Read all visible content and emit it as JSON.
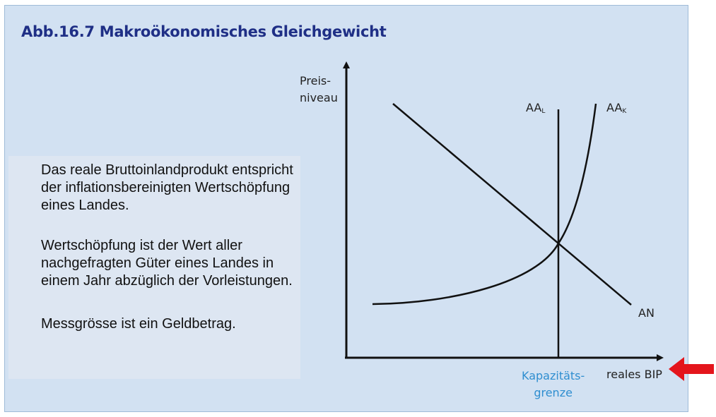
{
  "figure": {
    "title": "Abb.16.7  Makroökonomisches Gleichgewicht"
  },
  "text_box": {
    "p1": "Das reale Bruttoinlandprodukt entspricht der inflationsbereinigten Wertschöpfung eines Landes.",
    "p2": "Wertschöpfung ist der Wert aller nachgefragten Güter eines Landes in einem Jahr abzüglich der Vorleistungen.",
    "p3": "Messgrösse ist ein Geldbetrag."
  },
  "diagram": {
    "y_axis_line1": "Preis-",
    "y_axis_line2": "niveau",
    "x_axis": "reales BIP",
    "capacity_line1": "Kapazitäts-",
    "capacity_line2": "grenze",
    "aa_l": "AA",
    "aa_l_sub": "L",
    "aa_k": "AA",
    "aa_k_sub": "K",
    "an": "AN",
    "colors": {
      "title": "#1f2f86",
      "capacity_label": "#2f8ed0",
      "highlight_arrow": "#e4151c",
      "panel": "#d2e1f2"
    }
  }
}
